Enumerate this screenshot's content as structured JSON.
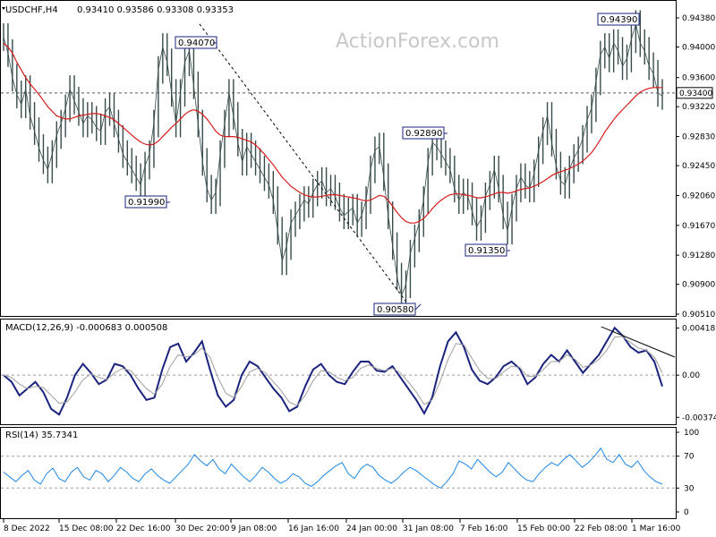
{
  "header": {
    "symbol": "USDCHF,H4",
    "ohlc": "0.93410 0.93586 0.93308 0.93353"
  },
  "watermark": "ActionForex.com",
  "chart_data": [
    {
      "type": "line",
      "panel": "price",
      "y_ticks": [
        "0.94380",
        "0.94000",
        "0.93600",
        "0.93220",
        "0.92830",
        "0.92450",
        "0.92060",
        "0.91670",
        "0.91280",
        "0.90900",
        "0.90510"
      ],
      "current_price_label": "0.93400",
      "x_ticks": [
        "8 Dec 2022",
        "15 Dec 08:00",
        "22 Dec 16:00",
        "30 Dec 20:00",
        "9 Jan 08:00",
        "16 Jan 16:00",
        "24 Jan 00:00",
        "31 Jan 08:00",
        "7 Feb 16:00",
        "15 Feb 00:00",
        "22 Feb 08:00",
        "1 Mar 16:00"
      ],
      "annotations": [
        {
          "label": "0.94070",
          "price": 0.9407
        },
        {
          "label": "0.91990",
          "price": 0.9199
        },
        {
          "label": "0.90580",
          "price": 0.9058
        },
        {
          "label": "0.92890",
          "price": 0.9289
        },
        {
          "label": "0.91350",
          "price": 0.9135
        },
        {
          "label": "0.94390",
          "price": 0.9439
        }
      ],
      "series": [
        {
          "color": "#374b4b",
          "values": [
            0.9413,
            0.9392,
            0.936,
            0.9338,
            0.9325,
            0.9345,
            0.931,
            0.929,
            0.9268,
            0.9252,
            0.924,
            0.926,
            0.9285,
            0.93,
            0.932,
            0.9345,
            0.933,
            0.9315,
            0.93,
            0.931,
            0.9305,
            0.9295,
            0.929,
            0.9315,
            0.9322,
            0.93,
            0.928,
            0.926,
            0.925,
            0.924,
            0.923,
            0.922,
            0.9245,
            0.926,
            0.93,
            0.937,
            0.94,
            0.938,
            0.934,
            0.93,
            0.934,
            0.938,
            0.9395,
            0.935,
            0.93,
            0.925,
            0.9215,
            0.92,
            0.921,
            0.926,
            0.93,
            0.934,
            0.931,
            0.9275,
            0.925,
            0.927,
            0.926,
            0.925,
            0.924,
            0.923,
            0.922,
            0.92,
            0.916,
            0.912,
            0.914,
            0.917,
            0.918,
            0.919,
            0.92,
            0.9195,
            0.921,
            0.922,
            0.9225,
            0.921,
            0.9215,
            0.9205,
            0.919,
            0.918,
            0.9185,
            0.919,
            0.917,
            0.918,
            0.92,
            0.924,
            0.9265,
            0.927,
            0.923,
            0.918,
            0.914,
            0.91,
            0.9075,
            0.909,
            0.913,
            0.915,
            0.917,
            0.92,
            0.925,
            0.9275,
            0.927,
            0.926,
            0.925,
            0.924,
            0.9215,
            0.92,
            0.921,
            0.9205,
            0.9185,
            0.9165,
            0.9175,
            0.9205,
            0.922,
            0.924,
            0.9215,
            0.918,
            0.916,
            0.919,
            0.9215,
            0.923,
            0.922,
            0.9215,
            0.9235,
            0.9265,
            0.929,
            0.931,
            0.9275,
            0.9245,
            0.9225,
            0.922,
            0.924,
            0.9255,
            0.9265,
            0.928,
            0.9305,
            0.932,
            0.9355,
            0.939,
            0.94,
            0.9385,
            0.9405,
            0.9395,
            0.9375,
            0.9385,
            0.941,
            0.943,
            0.9405,
            0.9395,
            0.9375,
            0.9365,
            0.934,
            0.9336
          ]
        },
        {
          "color": "#d81b1b",
          "values": [
            0.9405,
            0.94,
            0.9392,
            0.938,
            0.937,
            0.936,
            0.9352,
            0.9345,
            0.9338,
            0.933,
            0.9322,
            0.9316,
            0.931,
            0.9308,
            0.9306,
            0.9306,
            0.9308,
            0.931,
            0.9311,
            0.9312,
            0.9313,
            0.9313,
            0.9312,
            0.931,
            0.9308,
            0.9305,
            0.93,
            0.9295,
            0.929,
            0.9285,
            0.928,
            0.9276,
            0.9273,
            0.9272,
            0.9273,
            0.9277,
            0.9283,
            0.9289,
            0.9295,
            0.93,
            0.9306,
            0.9312,
            0.9316,
            0.9318,
            0.9316,
            0.9312,
            0.9306,
            0.9298,
            0.929,
            0.9285,
            0.9283,
            0.9283,
            0.9283,
            0.9282,
            0.928,
            0.9278,
            0.9276,
            0.9272,
            0.9266,
            0.926,
            0.9253,
            0.9246,
            0.9238,
            0.923,
            0.9224,
            0.9218,
            0.9214,
            0.921,
            0.9207,
            0.9205,
            0.9204,
            0.9204,
            0.9205,
            0.9206,
            0.9207,
            0.9207,
            0.9206,
            0.9205,
            0.9204,
            0.9203,
            0.9202,
            0.92,
            0.9199,
            0.92,
            0.9203,
            0.9206,
            0.9205,
            0.92,
            0.9192,
            0.9184,
            0.9177,
            0.9172,
            0.917,
            0.917,
            0.9172,
            0.9176,
            0.9182,
            0.9189,
            0.9195,
            0.92,
            0.9204,
            0.9207,
            0.9208,
            0.9208,
            0.9207,
            0.9206,
            0.9205,
            0.9203,
            0.9203,
            0.9204,
            0.9206,
            0.9208,
            0.921,
            0.921,
            0.9209,
            0.921,
            0.9212,
            0.9214,
            0.9215,
            0.9216,
            0.9218,
            0.9221,
            0.9224,
            0.9228,
            0.9232,
            0.9235,
            0.9237,
            0.9239,
            0.9241,
            0.9244,
            0.9247,
            0.9251,
            0.9256,
            0.9262,
            0.927,
            0.9279,
            0.9289,
            0.9297,
            0.9305,
            0.9312,
            0.9318,
            0.9324,
            0.933,
            0.9336,
            0.9341,
            0.9344,
            0.9346,
            0.9347,
            0.9347,
            0.9347
          ]
        }
      ],
      "trendline": {
        "from": [
          0.35,
          0.943
        ],
        "to": [
          0.63,
          0.906
        ],
        "style": "dashed"
      }
    },
    {
      "type": "line",
      "panel": "macd",
      "title": "MACD(12,26,9) -0.000683 0.000508",
      "y_ticks": [
        "0.00418",
        "0.00",
        "-0.003744"
      ],
      "ylim": [
        -0.0042,
        0.0047
      ],
      "series": [
        {
          "color": "#1a237e",
          "values": [
            0.0,
            -0.0006,
            -0.0018,
            -0.0012,
            -0.0006,
            -0.0015,
            -0.003,
            -0.0035,
            -0.002,
            0.0,
            0.001,
            0.0002,
            -0.0008,
            -0.0004,
            0.001,
            0.0008,
            0.0,
            -0.0012,
            -0.0022,
            -0.002,
            0.0005,
            0.0025,
            0.0028,
            0.0012,
            0.002,
            0.003,
            0.0005,
            -0.0018,
            -0.0028,
            -0.0022,
            0.0,
            0.0012,
            0.0008,
            -0.0002,
            -0.0012,
            -0.002,
            -0.0032,
            -0.0028,
            -0.001,
            0.0005,
            0.001,
            0.0,
            -0.0006,
            -0.0008,
            0.0003,
            0.0012,
            0.0012,
            0.0004,
            0.0003,
            0.0008,
            -0.0002,
            -0.0012,
            -0.0022,
            -0.0034,
            -0.002,
            0.0008,
            0.003,
            0.0038,
            0.0025,
            0.0005,
            -0.0005,
            -0.0008,
            -0.0002,
            0.0008,
            0.0012,
            0.0006,
            -0.0008,
            -0.0002,
            0.001,
            0.0018,
            0.0012,
            0.0022,
            0.0012,
            0.0002,
            0.001,
            0.0018,
            0.003,
            0.0042,
            0.0035,
            0.0025,
            0.002,
            0.0022,
            0.0012,
            -0.001
          ]
        },
        {
          "color": "#9e9e9e",
          "values": [
            0.0,
            -0.0002,
            -0.0008,
            -0.0012,
            -0.001,
            -0.0011,
            -0.0018,
            -0.0025,
            -0.0024,
            -0.0015,
            -0.0004,
            0.0001,
            -0.0002,
            -0.0004,
            0.0002,
            0.0006,
            0.0004,
            -0.0004,
            -0.0012,
            -0.0017,
            -0.0008,
            0.0008,
            0.0018,
            0.0016,
            0.0018,
            0.0024,
            0.0016,
            -0.0002,
            -0.0016,
            -0.002,
            -0.001,
            0.0003,
            0.0006,
            0.0002,
            -0.0006,
            -0.0014,
            -0.0024,
            -0.0027,
            -0.0018,
            -0.0005,
            0.0004,
            0.0003,
            -0.0002,
            -0.0005,
            -0.0002,
            0.0006,
            0.0009,
            0.0006,
            0.0004,
            0.0006,
            0.0002,
            -0.0006,
            -0.0015,
            -0.0026,
            -0.0022,
            -0.0006,
            0.0014,
            0.0028,
            0.0027,
            0.0015,
            0.0004,
            -0.0003,
            -0.0003,
            0.0003,
            0.0008,
            0.0007,
            -0.0001,
            -0.0001,
            0.0005,
            0.0012,
            0.0012,
            0.0018,
            0.0014,
            0.0007,
            0.0009,
            0.0014,
            0.0022,
            0.0034,
            0.0034,
            0.0029,
            0.0024,
            0.0022,
            0.0016,
            0.0002
          ]
        }
      ],
      "trendline": {
        "from": [
          0.84,
          0.0043
        ],
        "to": [
          0.93,
          0.0016
        ]
      }
    },
    {
      "type": "line",
      "panel": "rsi",
      "title": "RSI(14) 35.7341",
      "y_ticks": [
        "100",
        "70",
        "30",
        "0"
      ],
      "ylim": [
        0,
        100
      ],
      "levels": [
        70,
        30
      ],
      "series": [
        {
          "color": "#1e88e5",
          "values": [
            50,
            44,
            38,
            46,
            52,
            40,
            35,
            48,
            55,
            42,
            38,
            50,
            56,
            44,
            40,
            52,
            48,
            38,
            46,
            56,
            50,
            42,
            38,
            48,
            54,
            46,
            40,
            36,
            44,
            52,
            60,
            72,
            64,
            58,
            66,
            54,
            48,
            60,
            52,
            44,
            38,
            46,
            56,
            50,
            42,
            36,
            40,
            48,
            44,
            36,
            32,
            38,
            46,
            52,
            58,
            62,
            48,
            42,
            54,
            60,
            56,
            46,
            40,
            36,
            42,
            50,
            56,
            52,
            46,
            40,
            34,
            30,
            38,
            48,
            64,
            60,
            54,
            66,
            58,
            50,
            44,
            50,
            62,
            54,
            46,
            40,
            38,
            48,
            56,
            62,
            58,
            66,
            72,
            64,
            56,
            62,
            70,
            80,
            66,
            62,
            72,
            60,
            56,
            64,
            52,
            44,
            38,
            35
          ]
        }
      ]
    }
  ]
}
